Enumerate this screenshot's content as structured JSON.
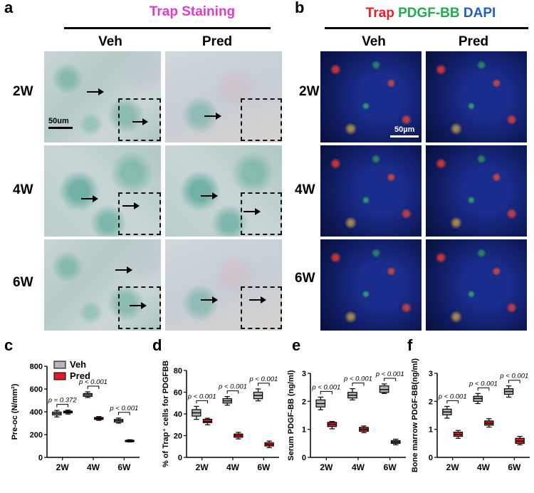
{
  "panel_a": {
    "letter": "a",
    "title": "Trap Staining",
    "title_color": "#e03cc8",
    "columns": [
      "Veh",
      "Pred"
    ],
    "rows": [
      "2W",
      "4W",
      "6W"
    ],
    "scale": "50um"
  },
  "panel_b": {
    "letter": "b",
    "title_parts": [
      {
        "text": "Trap",
        "color": "#e8202a"
      },
      {
        "text": "PDGF-BB",
        "color": "#1fae4b"
      },
      {
        "text": "DAPI",
        "color": "#1f5fc8"
      }
    ],
    "columns": [
      "Veh",
      "Pred"
    ],
    "rows": [
      "2W",
      "4W",
      "6W"
    ],
    "scale": "50µm"
  },
  "chart_data": [
    {
      "type": "box",
      "letter": "c",
      "ylabel": "Pre-oc (N/mm²)",
      "categories": [
        "2W",
        "4W",
        "6W"
      ],
      "ylim": [
        0,
        800
      ],
      "yticks": [
        0,
        200,
        400,
        600,
        800
      ],
      "legend": [
        "Veh",
        "Pred"
      ],
      "series": [
        {
          "name": "Veh",
          "color": "#b5b5b5",
          "boxes": [
            {
              "min": 355,
              "q1": 372,
              "median": 385,
              "q3": 398,
              "max": 412
            },
            {
              "min": 525,
              "q1": 535,
              "median": 548,
              "q3": 560,
              "max": 575
            },
            {
              "min": 300,
              "q1": 310,
              "median": 322,
              "q3": 333,
              "max": 345
            }
          ]
        },
        {
          "name": "Pred",
          "color": "#d81f26",
          "boxes": [
            {
              "min": 380,
              "q1": 390,
              "median": 398,
              "q3": 406,
              "max": 415
            },
            {
              "min": 325,
              "q1": 333,
              "median": 341,
              "q3": 350,
              "max": 358
            },
            {
              "min": 135,
              "q1": 140,
              "median": 145,
              "q3": 150,
              "max": 155
            }
          ]
        }
      ],
      "annotations": [
        "p = 0.372",
        "p < 0.001",
        "p < 0.001"
      ]
    },
    {
      "type": "box",
      "letter": "d",
      "ylabel": "% of Trap⁺ cells for PDGFBB",
      "categories": [
        "2W",
        "4W",
        "6W"
      ],
      "ylim": [
        0,
        80
      ],
      "yticks": [
        0,
        20,
        40,
        60,
        80
      ],
      "series": [
        {
          "name": "Veh",
          "color": "#b5b5b5",
          "boxes": [
            {
              "min": 35,
              "q1": 38,
              "median": 41,
              "q3": 44,
              "max": 47
            },
            {
              "min": 48,
              "q1": 50,
              "median": 52,
              "q3": 54,
              "max": 56
            },
            {
              "min": 52,
              "q1": 54,
              "median": 57,
              "q3": 60,
              "max": 63
            }
          ]
        },
        {
          "name": "Pred",
          "color": "#d81f26",
          "boxes": [
            {
              "min": 30,
              "q1": 32,
              "median": 33,
              "q3": 35,
              "max": 36
            },
            {
              "min": 17,
              "q1": 18.5,
              "median": 20,
              "q3": 21.5,
              "max": 23
            },
            {
              "min": 9,
              "q1": 10.5,
              "median": 12,
              "q3": 13.5,
              "max": 15
            }
          ]
        }
      ],
      "annotations": [
        "p < 0.001",
        "p < 0.001",
        "p < 0.001"
      ]
    },
    {
      "type": "box",
      "letter": "e",
      "ylabel": "Serum PDGF-BB (ng/ml)",
      "categories": [
        "2W",
        "4W",
        "6W"
      ],
      "ylim": [
        0,
        3
      ],
      "yticks": [
        0,
        1,
        2,
        3
      ],
      "series": [
        {
          "name": "Veh",
          "color": "#b5b5b5",
          "boxes": [
            {
              "min": 1.7,
              "q1": 1.8,
              "median": 1.92,
              "q3": 2.05,
              "max": 2.15
            },
            {
              "min": 2.05,
              "q1": 2.12,
              "median": 2.22,
              "q3": 2.32,
              "max": 2.45
            },
            {
              "min": 2.28,
              "q1": 2.32,
              "median": 2.42,
              "q3": 2.55,
              "max": 2.62
            }
          ]
        },
        {
          "name": "Pred",
          "color": "#d81f26",
          "boxes": [
            {
              "min": 1.02,
              "q1": 1.1,
              "median": 1.18,
              "q3": 1.25,
              "max": 1.28
            },
            {
              "min": 0.88,
              "q1": 0.93,
              "median": 1.0,
              "q3": 1.07,
              "max": 1.12
            },
            {
              "min": 0.45,
              "q1": 0.5,
              "median": 0.55,
              "q3": 0.6,
              "max": 0.65
            }
          ]
        }
      ],
      "annotations": [
        "p < 0.001",
        "p < 0.001",
        "p < 0.001"
      ]
    },
    {
      "type": "box",
      "letter": "f",
      "ylabel": "Bone marrow PDGF-BB(ng/ml)",
      "categories": [
        "2W",
        "4W",
        "6W"
      ],
      "ylim": [
        0,
        3
      ],
      "yticks": [
        0,
        1,
        2,
        3
      ],
      "series": [
        {
          "name": "Veh",
          "color": "#b5b5b5",
          "boxes": [
            {
              "min": 1.4,
              "q1": 1.52,
              "median": 1.62,
              "q3": 1.72,
              "max": 1.82
            },
            {
              "min": 1.92,
              "q1": 2.0,
              "median": 2.1,
              "q3": 2.18,
              "max": 2.28
            },
            {
              "min": 2.15,
              "q1": 2.25,
              "median": 2.35,
              "q3": 2.45,
              "max": 2.55
            }
          ]
        },
        {
          "name": "Pred",
          "color": "#d81f26",
          "boxes": [
            {
              "min": 0.68,
              "q1": 0.75,
              "median": 0.82,
              "q3": 0.9,
              "max": 0.96
            },
            {
              "min": 1.08,
              "q1": 1.15,
              "median": 1.22,
              "q3": 1.3,
              "max": 1.38
            },
            {
              "min": 0.45,
              "q1": 0.5,
              "median": 0.58,
              "q3": 0.68,
              "max": 0.75
            }
          ]
        }
      ],
      "annotations": [
        "p < 0.001",
        "p < 0.001",
        "p < 0.001"
      ]
    }
  ]
}
